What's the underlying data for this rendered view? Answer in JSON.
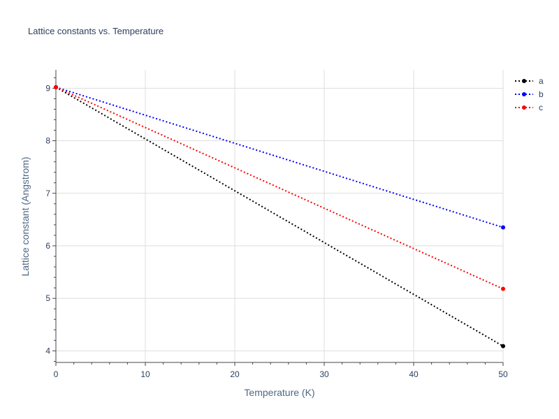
{
  "chart_data": {
    "type": "line",
    "title": "Lattice constants vs. Temperature",
    "xlabel": "Temperature (K)",
    "ylabel": "Lattice constant (Angstrom)",
    "xlim": [
      0,
      50
    ],
    "ylim": [
      3.78,
      9.35
    ],
    "xticks": [
      0,
      10,
      20,
      30,
      40,
      50
    ],
    "yticks": [
      4,
      5,
      6,
      7,
      8,
      9
    ],
    "grid": true,
    "legend_position": "top-right",
    "line_style": "dotted",
    "series": [
      {
        "name": "a",
        "color": "#000000",
        "x": [
          0,
          50
        ],
        "y": [
          9.02,
          4.09
        ]
      },
      {
        "name": "b",
        "color": "#0000ff",
        "x": [
          0,
          50
        ],
        "y": [
          9.02,
          6.35
        ]
      },
      {
        "name": "c",
        "color": "#ff0000",
        "x": [
          0,
          50
        ],
        "y": [
          9.02,
          5.18
        ]
      }
    ]
  }
}
